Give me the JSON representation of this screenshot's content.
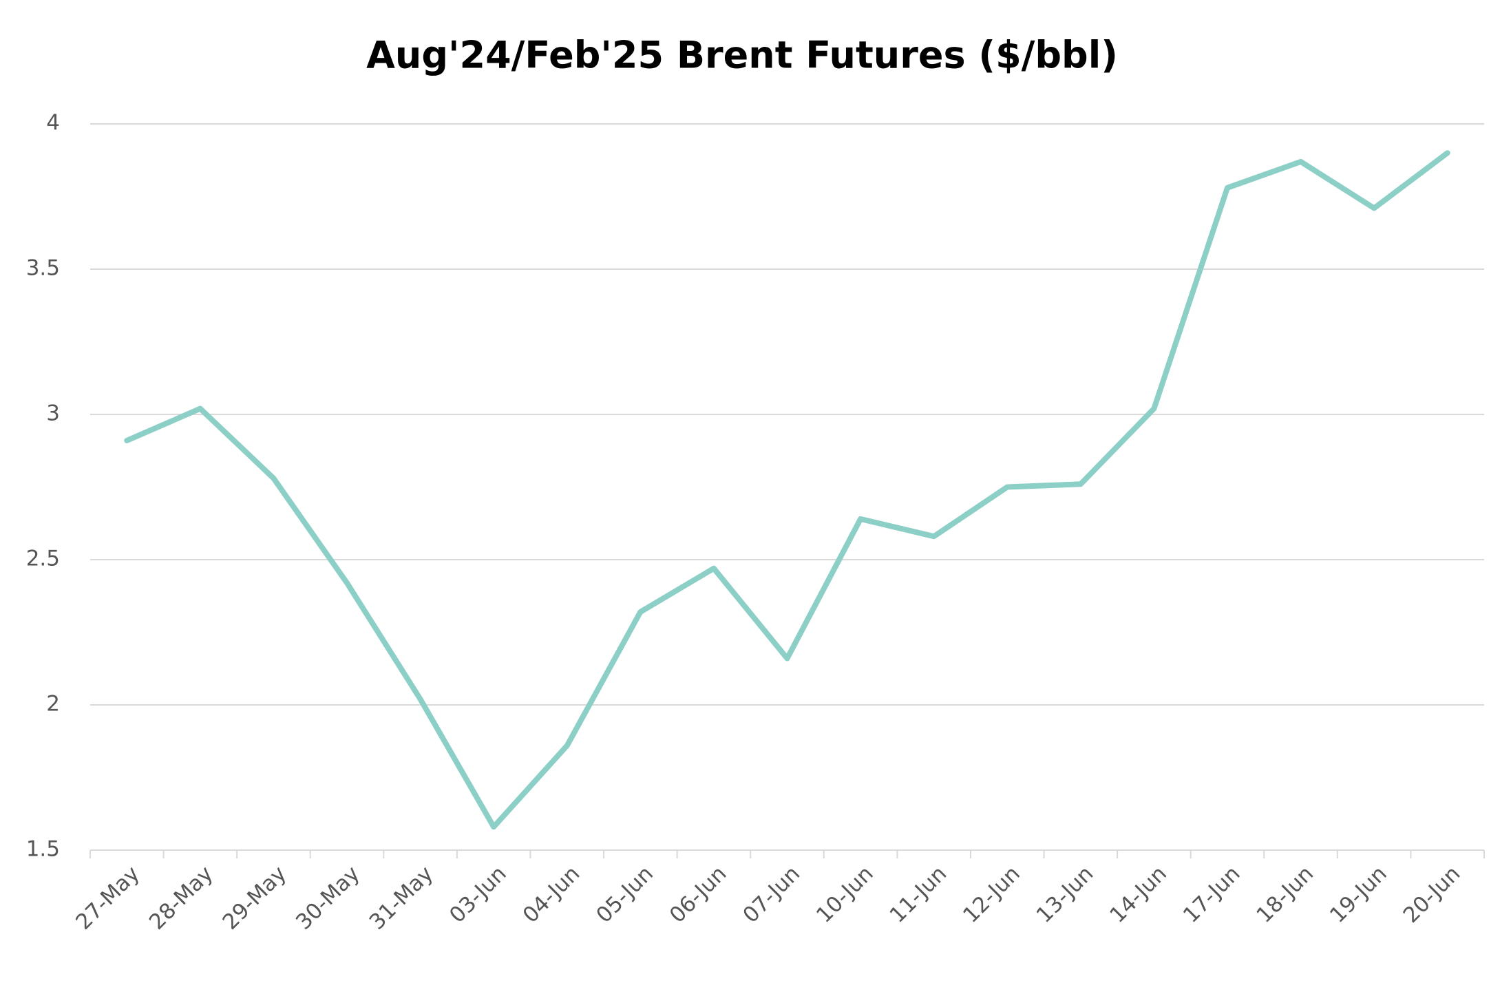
{
  "chart_data": {
    "type": "line",
    "title": "Aug'24/Feb'25 Brent Futures ($/bbl)",
    "categories": [
      "27-May",
      "28-May",
      "29-May",
      "30-May",
      "31-May",
      "03-Jun",
      "04-Jun",
      "05-Jun",
      "06-Jun",
      "07-Jun",
      "10-Jun",
      "11-Jun",
      "12-Jun",
      "13-Jun",
      "14-Jun",
      "17-Jun",
      "18-Jun",
      "19-Jun",
      "20-Jun"
    ],
    "values": [
      2.91,
      3.02,
      2.78,
      2.42,
      2.02,
      1.58,
      1.86,
      2.32,
      2.47,
      2.16,
      2.64,
      2.58,
      2.75,
      2.76,
      3.02,
      3.78,
      3.87,
      3.71,
      3.9
    ],
    "color": "#8ccfc6",
    "ylim": [
      1.5,
      4
    ],
    "yticks": [
      1.5,
      2,
      2.5,
      3,
      3.5,
      4
    ],
    "grid": true
  }
}
